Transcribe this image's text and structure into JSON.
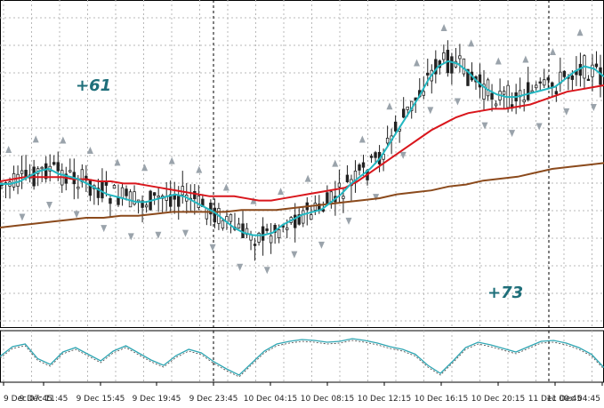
{
  "annotations": {
    "profit_left": "+61",
    "profit_right": "+73"
  },
  "colors": {
    "grid": "#b8b8b8",
    "candle": "#222222",
    "ma_fast": "#22b7c1",
    "ma_mid": "#d9161c",
    "ma_slow": "#8b4a1c",
    "oscillator": "#2fa6b3",
    "fractal": "#9aa3ab",
    "session_line": "#000000"
  },
  "chart_data": [
    {
      "type": "candlestick",
      "title": "",
      "xlabel": "",
      "ylabel": "",
      "grid": true,
      "x_tick_labels": [
        "9 Dec 07:45",
        "9 Dec 11:45",
        "9 Dec 15:45",
        "9 Dec 19:45",
        "9 Dec 23:45",
        "10 Dec 04:15",
        "10 Dec 08:15",
        "10 Dec 12:15",
        "10 Dec 16:15",
        "10 Dec 20:15",
        "11 Dec 00:45",
        "11 Dec 04:45"
      ],
      "session_separators": [
        "10 Dec 00:00",
        "11 Dec 00:00"
      ],
      "series": [
        {
          "style": "ma_fast",
          "values": [
            0.42,
            0.42,
            0.43,
            0.45,
            0.47,
            0.48,
            0.46,
            0.45,
            0.44,
            0.42,
            0.4,
            0.38,
            0.37,
            0.36,
            0.35,
            0.35,
            0.36,
            0.37,
            0.38,
            0.37,
            0.35,
            0.33,
            0.31,
            0.28,
            0.25,
            0.23,
            0.22,
            0.22,
            0.23,
            0.26,
            0.28,
            0.3,
            0.31,
            0.32,
            0.35,
            0.38,
            0.42,
            0.45,
            0.48,
            0.52,
            0.58,
            0.64,
            0.7,
            0.76,
            0.83,
            0.88,
            0.9,
            0.89,
            0.86,
            0.82,
            0.79,
            0.77,
            0.76,
            0.76,
            0.77,
            0.78,
            0.79,
            0.8,
            0.83,
            0.86,
            0.88,
            0.87,
            0.84
          ]
        },
        {
          "style": "ma_mid",
          "values": [
            0.4,
            0.41,
            0.42,
            0.42,
            0.42,
            0.42,
            0.41,
            0.41,
            0.4,
            0.4,
            0.39,
            0.39,
            0.38,
            0.37,
            0.36,
            0.35,
            0.34,
            0.33,
            0.33,
            0.33,
            0.32,
            0.31,
            0.31,
            0.32,
            0.33,
            0.34,
            0.35,
            0.36,
            0.37,
            0.4,
            0.44,
            0.48,
            0.52,
            0.56,
            0.6,
            0.64,
            0.67,
            0.7,
            0.72,
            0.73,
            0.74,
            0.74,
            0.75,
            0.76,
            0.78,
            0.8,
            0.82,
            0.83,
            0.84,
            0.85
          ]
        },
        {
          "style": "ma_slow",
          "values": [
            0.2,
            0.21,
            0.22,
            0.23,
            0.24,
            0.25,
            0.25,
            0.26,
            0.26,
            0.27,
            0.28,
            0.28,
            0.28,
            0.28,
            0.29,
            0.29,
            0.29,
            0.3,
            0.31,
            0.32,
            0.33,
            0.34,
            0.35,
            0.37,
            0.38,
            0.39,
            0.41,
            0.42,
            0.44,
            0.45,
            0.46,
            0.48,
            0.5,
            0.51,
            0.52,
            0.53
          ]
        },
        {
          "style": "oscillator",
          "values": [
            0.5,
            0.72,
            0.78,
            0.45,
            0.32,
            0.6,
            0.7,
            0.55,
            0.4,
            0.62,
            0.74,
            0.58,
            0.42,
            0.3,
            0.52,
            0.66,
            0.58,
            0.38,
            0.22,
            0.08,
            0.35,
            0.62,
            0.78,
            0.84,
            0.88,
            0.86,
            0.82,
            0.84,
            0.9,
            0.86,
            0.8,
            0.72,
            0.66,
            0.55,
            0.3,
            0.12,
            0.4,
            0.7,
            0.82,
            0.76,
            0.68,
            0.6,
            0.72,
            0.84,
            0.86,
            0.8,
            0.7,
            0.55,
            0.25
          ]
        }
      ]
    }
  ]
}
